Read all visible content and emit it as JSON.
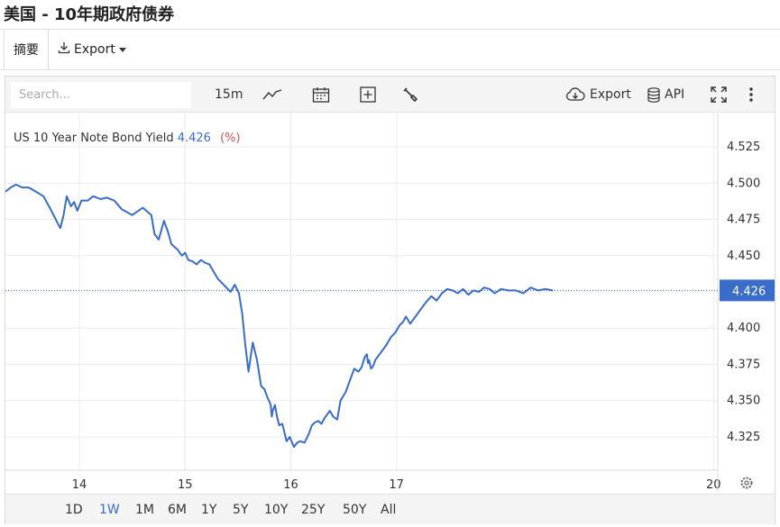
{
  "page": {
    "title": "美国 - 10年期政府债券"
  },
  "tabs": [
    {
      "label": "摘要"
    },
    {
      "label": "Export"
    }
  ],
  "toolbar": {
    "search_placeholder": "Search...",
    "interval": "15m",
    "export_label": "Export",
    "api_label": "API",
    "icons": [
      "chart-type-icon",
      "calendar-icon",
      "add-indicator-icon",
      "wrench-icon",
      "cloud-download-icon",
      "database-icon",
      "fullscreen-icon",
      "more-vertical-icon"
    ]
  },
  "legend": {
    "name": "US 10 Year Note Bond Yield",
    "value": "4.426",
    "unit": "(%)"
  },
  "current_price_label": "4.426",
  "ranges": [
    {
      "label": "1D",
      "active": false
    },
    {
      "label": "1W",
      "active": true
    },
    {
      "label": "1M",
      "active": false
    },
    {
      "label": "6M",
      "active": false
    },
    {
      "label": "1Y",
      "active": false
    },
    {
      "label": "5Y",
      "active": false
    },
    {
      "label": "10Y",
      "active": false
    },
    {
      "label": "25Y",
      "active": false
    },
    {
      "label": "50Y",
      "active": false
    },
    {
      "label": "All",
      "active": false
    }
  ],
  "colors": {
    "line": "#3a6cc9",
    "accent": "#3a6cc9",
    "legend_unit": "#d05050"
  },
  "chart_data": {
    "type": "line",
    "title": "US 10 Year Note Bond Yield",
    "ylabel": "(%)",
    "ylim": [
      4.302,
      4.548
    ],
    "xlim": [
      13.3,
      20.04
    ],
    "x_ticks": [
      14,
      15,
      16,
      17,
      20
    ],
    "x_tick_labels": [
      "14",
      "15",
      "16",
      "17",
      "20"
    ],
    "y_ticks": [
      4.325,
      4.35,
      4.375,
      4.4,
      4.425,
      4.45,
      4.475,
      4.5,
      4.525
    ],
    "y_tick_labels": [
      "4.325",
      "4.350",
      "4.375",
      "4.400",
      "",
      "4.450",
      "4.475",
      "4.500",
      "4.525"
    ],
    "grid": true,
    "last_value": 4.426,
    "series": [
      {
        "name": "US 10 Year Note Bond Yield",
        "x": [
          13.3,
          13.35,
          13.4,
          13.46,
          13.52,
          13.59,
          13.66,
          13.72,
          13.79,
          13.82,
          13.85,
          13.88,
          13.92,
          13.95,
          13.98,
          14.02,
          14.08,
          14.13,
          14.2,
          14.26,
          14.33,
          14.4,
          14.5,
          14.6,
          14.68,
          14.71,
          14.75,
          14.8,
          14.84,
          14.87,
          14.9,
          14.93,
          14.97,
          15.0,
          15.03,
          15.07,
          15.11,
          15.15,
          15.19,
          15.23,
          15.27,
          15.31,
          15.35,
          15.39,
          15.43,
          15.47,
          15.51,
          15.54,
          15.57,
          15.6,
          15.64,
          15.68,
          15.72,
          15.75,
          15.78,
          15.8,
          15.81,
          15.82,
          15.83,
          15.85,
          15.87,
          15.89,
          15.92,
          15.96,
          15.99,
          16.03,
          16.06,
          16.09,
          16.13,
          16.17,
          16.2,
          16.23,
          16.26,
          16.29,
          16.32,
          16.35,
          16.37,
          16.4,
          16.44,
          16.47,
          16.52,
          16.56,
          16.6,
          16.64,
          16.67,
          16.7,
          16.72,
          16.73,
          16.74,
          16.76,
          16.78,
          16.8,
          16.83,
          16.86,
          16.9,
          16.95,
          16.99,
          17.03,
          17.06,
          17.09,
          17.13,
          17.18,
          17.23,
          17.28,
          17.33,
          17.38,
          17.43,
          17.48,
          17.53,
          17.58,
          17.63,
          17.68,
          17.73,
          17.78,
          17.83,
          17.88,
          17.93,
          17.99,
          18.06,
          18.13,
          18.2,
          18.27,
          18.34,
          18.41,
          18.48
        ],
        "values": [
          4.494,
          4.497,
          4.499,
          4.497,
          4.497,
          4.494,
          4.491,
          4.483,
          4.473,
          4.469,
          4.478,
          4.491,
          4.484,
          4.487,
          4.481,
          4.488,
          4.488,
          4.491,
          4.489,
          4.49,
          4.488,
          4.482,
          4.478,
          4.483,
          4.478,
          4.465,
          4.461,
          4.474,
          4.466,
          4.458,
          4.456,
          4.454,
          4.45,
          4.452,
          4.447,
          4.446,
          4.444,
          4.447,
          4.445,
          4.444,
          4.439,
          4.434,
          4.431,
          4.428,
          4.425,
          4.43,
          4.424,
          4.41,
          4.388,
          4.37,
          4.39,
          4.378,
          4.36,
          4.358,
          4.352,
          4.349,
          4.347,
          4.339,
          4.343,
          4.347,
          4.339,
          4.333,
          4.334,
          4.322,
          4.325,
          4.318,
          4.321,
          4.322,
          4.321,
          4.327,
          4.333,
          4.335,
          4.336,
          4.334,
          4.338,
          4.341,
          4.343,
          4.339,
          4.337,
          4.35,
          4.356,
          4.364,
          4.372,
          4.37,
          4.373,
          4.38,
          4.382,
          4.376,
          4.378,
          4.372,
          4.374,
          4.378,
          4.381,
          4.384,
          4.388,
          4.394,
          4.397,
          4.402,
          4.404,
          4.408,
          4.403,
          4.408,
          4.413,
          4.418,
          4.422,
          4.419,
          4.424,
          4.427,
          4.426,
          4.424,
          4.427,
          4.423,
          4.426,
          4.425,
          4.428,
          4.427,
          4.424,
          4.427,
          4.426,
          4.426,
          4.424,
          4.428,
          4.426,
          4.427,
          4.426
        ]
      }
    ]
  }
}
